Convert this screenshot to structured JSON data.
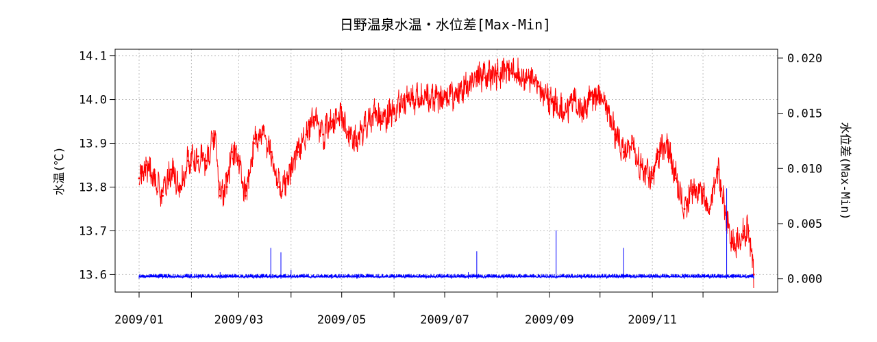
{
  "chart_data": {
    "type": "line",
    "title": "日野温泉水温・水位差[Max-Min]",
    "xlabel": "",
    "ylabel": "水温(℃)",
    "y2label": "水位差(Max-Min)",
    "xlim": [
      "2009-01-01",
      "2009-12-31"
    ],
    "ylim": [
      13.56,
      14.115
    ],
    "y2lim": [
      -0.0012,
      0.0208
    ],
    "grid": true,
    "x_ticks": [
      "2009/01",
      "2009/02",
      "2009/03",
      "2009/04",
      "2009/05",
      "2009/06",
      "2009/07",
      "2009/08",
      "2009/09",
      "2009/10",
      "2009/11",
      "2009/12"
    ],
    "x_tick_labels": [
      "2009/01",
      "",
      "2009/03",
      "",
      "2009/05",
      "",
      "2009/07",
      "",
      "2009/09",
      "",
      "2009/11",
      ""
    ],
    "y_ticks": [
      13.6,
      13.7,
      13.8,
      13.9,
      14.0,
      14.1
    ],
    "y_tick_labels": [
      "13.6",
      "13.7",
      "13.8",
      "13.9",
      "14.0",
      "14.1"
    ],
    "y2_ticks": [
      0.0,
      0.005,
      0.01,
      0.015,
      0.02
    ],
    "y2_tick_labels": [
      "0.000",
      "0.005",
      "0.010",
      "0.015",
      "0.020"
    ],
    "series": [
      {
        "axis": "left",
        "color": "#ff0000",
        "x": [
          "2009-01-01",
          "2009-01-05",
          "2009-01-10",
          "2009-01-15",
          "2009-01-20",
          "2009-01-25",
          "2009-01-30",
          "2009-02-05",
          "2009-02-10",
          "2009-02-15",
          "2009-02-18",
          "2009-02-22",
          "2009-02-25",
          "2009-03-01",
          "2009-03-05",
          "2009-03-10",
          "2009-03-15",
          "2009-03-20",
          "2009-03-25",
          "2009-03-30",
          "2009-04-05",
          "2009-04-10",
          "2009-04-15",
          "2009-04-20",
          "2009-04-25",
          "2009-05-01",
          "2009-05-05",
          "2009-05-10",
          "2009-05-15",
          "2009-05-20",
          "2009-05-25",
          "2009-06-01",
          "2009-06-10",
          "2009-06-20",
          "2009-06-30",
          "2009-07-10",
          "2009-07-20",
          "2009-07-25",
          "2009-08-01",
          "2009-08-10",
          "2009-08-20",
          "2009-08-25",
          "2009-09-01",
          "2009-09-05",
          "2009-09-10",
          "2009-09-15",
          "2009-09-20",
          "2009-09-25",
          "2009-10-01",
          "2009-10-05",
          "2009-10-10",
          "2009-10-15",
          "2009-10-20",
          "2009-10-25",
          "2009-11-01",
          "2009-11-05",
          "2009-11-10",
          "2009-11-15",
          "2009-11-20",
          "2009-11-25",
          "2009-12-01",
          "2009-12-05",
          "2009-12-10",
          "2009-12-15",
          "2009-12-20",
          "2009-12-25",
          "2009-12-28",
          "2009-12-31"
        ],
        "values": [
          13.82,
          13.85,
          13.82,
          13.78,
          13.84,
          13.8,
          13.86,
          13.87,
          13.86,
          13.92,
          13.78,
          13.8,
          13.88,
          13.86,
          13.78,
          13.9,
          13.92,
          13.88,
          13.8,
          13.82,
          13.88,
          13.92,
          13.96,
          13.92,
          13.95,
          13.96,
          13.92,
          13.9,
          13.94,
          13.97,
          13.95,
          13.98,
          14.0,
          14.01,
          14.0,
          14.02,
          14.05,
          14.05,
          14.06,
          14.06,
          14.05,
          14.03,
          14.0,
          13.99,
          13.97,
          14.0,
          13.97,
          14.0,
          14.01,
          13.98,
          13.92,
          13.88,
          13.9,
          13.85,
          13.82,
          13.88,
          13.9,
          13.82,
          13.75,
          13.8,
          13.78,
          13.75,
          13.84,
          13.72,
          13.66,
          13.7,
          13.7,
          13.6
        ]
      },
      {
        "axis": "right",
        "color": "#0000ff",
        "x": [
          "2009-01-01",
          "2009-01-15",
          "2009-02-05",
          "2009-02-18",
          "2009-03-10",
          "2009-03-20",
          "2009-03-26",
          "2009-04-01",
          "2009-04-25",
          "2009-05-10",
          "2009-06-01",
          "2009-06-20",
          "2009-07-05",
          "2009-07-15",
          "2009-07-20",
          "2009-08-05",
          "2009-09-05",
          "2009-09-20",
          "2009-10-05",
          "2009-10-15",
          "2009-11-01",
          "2009-11-20",
          "2009-12-05",
          "2009-12-15",
          "2009-12-31"
        ],
        "values": [
          0.0003,
          0.0002,
          0.0002,
          0.0006,
          0.0002,
          0.0028,
          0.0024,
          0.0008,
          0.0003,
          0.0004,
          0.0002,
          0.0003,
          0.0004,
          0.0006,
          0.0025,
          0.0003,
          0.0044,
          0.0003,
          0.0002,
          0.0028,
          0.0003,
          0.0002,
          0.0003,
          0.0082,
          0.0003
        ]
      }
    ]
  }
}
